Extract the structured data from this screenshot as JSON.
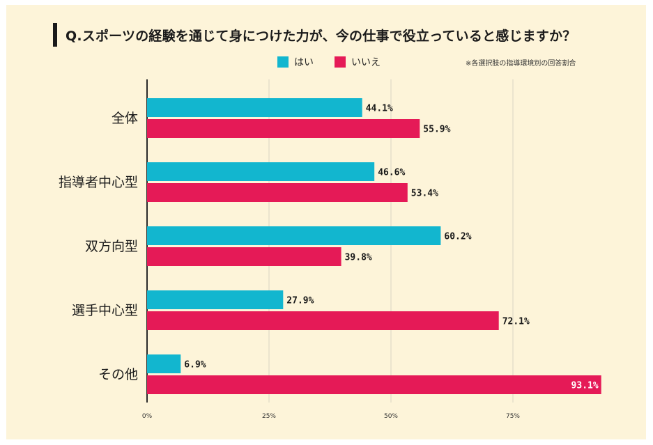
{
  "title": "Q.スポーツの経験を通じて身につけた力が、今の仕事で役立っていると感じますか？",
  "note": "※各選択肢の指導環境別の回答割合",
  "colors": {
    "yes": "#12b6cf",
    "no": "#e51a57",
    "background": "#fdf4d9",
    "grid": "#d9d3c2"
  },
  "chart_data": {
    "type": "bar",
    "orientation": "horizontal",
    "title": "Q.スポーツの経験を通じて身につけた力が、今の仕事で役立っていると感じますか？",
    "categories": [
      "全体",
      "指導者中心型",
      "双方向型",
      "選手中心型",
      "その他"
    ],
    "series": [
      {
        "name": "はい",
        "color": "#12b6cf",
        "values": [
          44.1,
          46.6,
          60.2,
          27.9,
          6.9
        ]
      },
      {
        "name": "いいえ",
        "color": "#e51a57",
        "values": [
          55.9,
          53.4,
          39.8,
          72.1,
          93.1
        ]
      }
    ],
    "xlim": [
      0,
      100
    ],
    "xticks": [
      0,
      25,
      50,
      75
    ],
    "xtick_labels": [
      "0%",
      "25%",
      "50%",
      "75%"
    ],
    "value_suffix": "%",
    "grid": true,
    "legend": "top"
  }
}
